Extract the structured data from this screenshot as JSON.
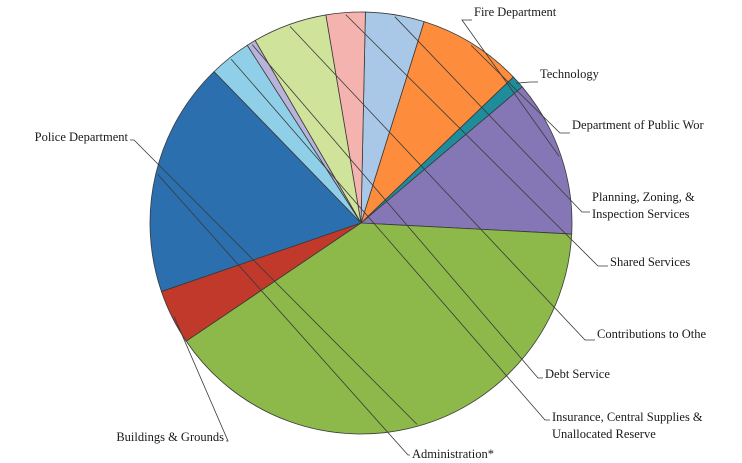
{
  "chart_data": {
    "type": "pie",
    "title": "",
    "slices": [
      {
        "label": "Fire Department",
        "lines": [
          "Fire Department"
        ],
        "value": 12.0,
        "color": "#8577b5"
      },
      {
        "label": "Technology",
        "lines": [
          "Technology"
        ],
        "value": 1.0,
        "color": "#1f8c9c"
      },
      {
        "label": "Department of Public Wor",
        "lines": [
          "Department of Public Wor"
        ],
        "value": 8.0,
        "color": "#fd8d3c"
      },
      {
        "label": "Planning, Zoning, & Inspection Services",
        "lines": [
          "Planning, Zoning, &",
          "Inspection Services"
        ],
        "value": 4.5,
        "color": "#a9c8e8"
      },
      {
        "label": "Shared Services",
        "lines": [
          "Shared Services"
        ],
        "value": 3.0,
        "color": "#f4b3ae"
      },
      {
        "label": "Contributions to Othe",
        "lines": [
          "Contributions to Othe"
        ],
        "value": 5.7,
        "color": "#cfe39a"
      },
      {
        "label": "Debt Service",
        "lines": [
          "Debt Service"
        ],
        "value": 0.7,
        "color": "#b9b3da"
      },
      {
        "label": "Insurance, Central Supplies & Unallocated Reserve",
        "lines": [
          "Insurance, Central Supplies &",
          "Unallocated Reserve"
        ],
        "value": 3.2,
        "color": "#8fd0e8"
      },
      {
        "label": "Administration*",
        "lines": [
          "Administration*"
        ],
        "value": 18.0,
        "color": "#2b6fae"
      },
      {
        "label": "Buildings & Grounds",
        "lines": [
          "Buildings & Grounds"
        ],
        "value": 4.2,
        "color": "#c0392b"
      },
      {
        "label": "Police Department",
        "lines": [
          "Police Department"
        ],
        "value": 39.7,
        "color": "#8db84a"
      }
    ]
  }
}
